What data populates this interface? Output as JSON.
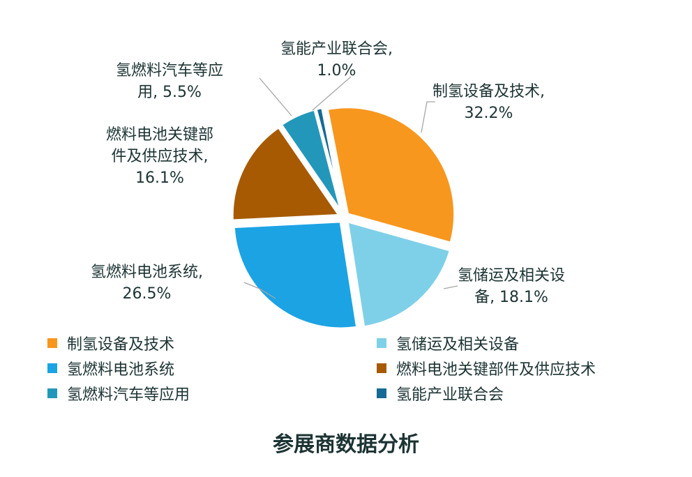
{
  "chart_data": {
    "type": "pie",
    "title": "参展商数据分析",
    "categories": [
      "制氢设备及技术",
      "氢储运及相关设备",
      "氢燃料电池系统",
      "燃料电池关键部件及供应技术",
      "氢燃料汽车等应用",
      "氢能产业联合会"
    ],
    "values": [
      32.2,
      18.1,
      26.5,
      16.1,
      5.5,
      1.0
    ],
    "colors": [
      "#F7971E",
      "#7ED0E8",
      "#1CA3E4",
      "#A75A02",
      "#2397BA",
      "#156A96"
    ],
    "data_labels": [
      "制氢设备及技术,\n32.2%",
      "氢储运及相关设\n备, 18.1%",
      "氢燃料电池系统,\n26.5%",
      "燃料电池关键部\n件及供应技术,\n16.1%",
      "氢燃料汽车等应\n用, 5.5%",
      "氢能产业联合会,\n1.0%"
    ],
    "legend_position": "bottom",
    "exploded": true
  }
}
